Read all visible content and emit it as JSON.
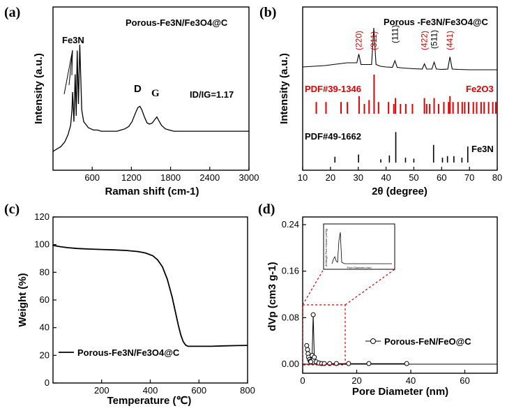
{
  "panels": {
    "a": {
      "label": "(a)"
    },
    "b": {
      "label": "(b)"
    },
    "c": {
      "label": "(c)"
    },
    "d": {
      "label": "(d)"
    }
  },
  "chart_data": [
    {
      "id": "a",
      "type": "line",
      "title": "Porous-Fe3N/Fe3O4@C",
      "xlabel": "Raman shift (cm-1)",
      "ylabel": "Intensity (a.u.)",
      "xlim": [
        0,
        3000
      ],
      "xticks": [
        600,
        1200,
        1800,
        2400,
        3000
      ],
      "annotations": {
        "fe3n": "Fe3N",
        "d": "D",
        "g": "G",
        "ratio": "ID/IG=1.17"
      },
      "series": [
        {
          "x": [
            0,
            60,
            120,
            180,
            230,
            270,
            290,
            300,
            320,
            340,
            355,
            370,
            390,
            410,
            440,
            470,
            500,
            540,
            580,
            620,
            680,
            740,
            800,
            860,
            920,
            980,
            1040,
            1100,
            1160,
            1210,
            1260,
            1300,
            1330,
            1360,
            1400,
            1440,
            1480,
            1520,
            1560,
            1590,
            1620,
            1660,
            1720,
            1780,
            1850,
            1950,
            2050,
            2150,
            2250,
            2350,
            2450,
            2550,
            2650,
            2750,
            2850,
            2950,
            3000
          ],
          "y": [
            0.1,
            0.12,
            0.14,
            0.18,
            0.24,
            0.32,
            0.45,
            0.6,
            0.35,
            0.75,
            0.4,
            0.95,
            0.5,
            1.0,
            0.45,
            0.35,
            0.33,
            0.3,
            0.29,
            0.28,
            0.28,
            0.27,
            0.27,
            0.27,
            0.27,
            0.27,
            0.28,
            0.29,
            0.31,
            0.35,
            0.42,
            0.47,
            0.48,
            0.45,
            0.39,
            0.34,
            0.33,
            0.34,
            0.37,
            0.39,
            0.36,
            0.32,
            0.29,
            0.28,
            0.27,
            0.27,
            0.27,
            0.27,
            0.27,
            0.27,
            0.27,
            0.27,
            0.27,
            0.27,
            0.27,
            0.27,
            0.27
          ]
        }
      ]
    },
    {
      "id": "b",
      "type": "line",
      "title": "Porous -Fe3N/Fe3O4@C",
      "xlabel": "2θ (degree)",
      "ylabel": "Intensity (a.u.)",
      "xlim": [
        10,
        80
      ],
      "xticks": [
        10,
        20,
        30,
        40,
        50,
        60,
        70,
        80
      ],
      "peak_labels": [
        {
          "text": "(220)",
          "x": 30.2,
          "color": "#e00000"
        },
        {
          "text": "(311)",
          "x": 35.6,
          "color": "#e00000"
        },
        {
          "text": "(111)",
          "x": 43.2,
          "color": "#000000"
        },
        {
          "text": "(422)",
          "x": 53.8,
          "color": "#e00000"
        },
        {
          "text": "(511)",
          "x": 57.3,
          "color": "#000000"
        },
        {
          "text": "(441)",
          "x": 63.0,
          "color": "#e00000"
        }
      ],
      "pattern": {
        "x": [
          10,
          14,
          18,
          22,
          26,
          28,
          29.5,
          30.2,
          31,
          33,
          34.8,
          35.6,
          36.4,
          38,
          40,
          42.3,
          43.2,
          44,
          46,
          50,
          53,
          53.8,
          54.6,
          56.5,
          57.3,
          58.1,
          60,
          62.2,
          63.0,
          63.8,
          66,
          70,
          75,
          80
        ],
        "y": [
          0.48,
          0.5,
          0.52,
          0.56,
          0.6,
          0.6,
          0.6,
          0.85,
          0.55,
          0.55,
          0.55,
          1.6,
          0.55,
          0.5,
          0.48,
          0.47,
          0.66,
          0.47,
          0.45,
          0.43,
          0.42,
          0.57,
          0.42,
          0.42,
          0.62,
          0.42,
          0.41,
          0.42,
          0.77,
          0.42,
          0.41,
          0.4,
          0.4,
          0.4
        ]
      },
      "references": [
        {
          "name": "PDF#39-1346",
          "phase": "Fe2O3",
          "color": "#e00000",
          "positions": [
            14.9,
            18.4,
            23.8,
            26.1,
            30.3,
            32.2,
            33.9,
            35.7,
            37.3,
            40.9,
            42.8,
            43.4,
            45.2,
            47.1,
            49.5,
            53.8,
            54.6,
            55.7,
            57.3,
            58.9,
            60.8,
            62.5,
            63.0,
            64.1,
            65.9,
            67.4,
            68.3,
            69.7,
            71.4,
            72.6,
            74.2,
            75.3,
            76.9,
            78.4,
            79.5
          ],
          "intensities": [
            0.3,
            0.3,
            0.3,
            0.3,
            0.45,
            0.25,
            0.35,
            1.0,
            0.3,
            0.3,
            0.25,
            0.4,
            0.25,
            0.25,
            0.25,
            0.4,
            0.25,
            0.25,
            0.4,
            0.25,
            0.3,
            0.3,
            0.45,
            0.3,
            0.3,
            0.3,
            0.3,
            0.3,
            0.3,
            0.3,
            0.3,
            0.3,
            0.3,
            0.3,
            0.3
          ]
        },
        {
          "name": "PDF#49-1662",
          "phase": "Fe3N",
          "color": "#000000",
          "positions": [
            21.6,
            30.1,
            38.1,
            41.2,
            43.5,
            47.0,
            50.0,
            57.1,
            60.3,
            62.1,
            64.4,
            67.3,
            69.4
          ],
          "intensities": [
            0.18,
            0.25,
            0.1,
            0.22,
            0.95,
            0.15,
            0.12,
            0.55,
            0.15,
            0.2,
            0.2,
            0.15,
            0.5
          ]
        }
      ]
    },
    {
      "id": "c",
      "type": "line",
      "xlabel": "Temperature (℃)",
      "ylabel": "Weight (%)",
      "xlim": [
        0,
        800
      ],
      "ylim": [
        0,
        120
      ],
      "xticks": [
        200,
        400,
        600,
        800
      ],
      "yticks": [
        0,
        20,
        40,
        60,
        80,
        100,
        120
      ],
      "series": [
        {
          "name": "Porous-Fe3N/Fe3O4@C",
          "x": [
            0,
            30,
            60,
            100,
            150,
            200,
            250,
            300,
            350,
            380,
            410,
            430,
            450,
            470,
            490,
            505,
            515,
            525,
            535,
            545,
            555,
            600,
            650,
            700,
            750,
            800
          ],
          "y": [
            99.5,
            98.5,
            97.8,
            97.2,
            96.8,
            96.5,
            96.2,
            95.8,
            95,
            94,
            92,
            89,
            84,
            75,
            62,
            50,
            42,
            35,
            30,
            27.5,
            26.5,
            26.5,
            26.5,
            26.8,
            27.0,
            27.2
          ]
        }
      ]
    },
    {
      "id": "d",
      "type": "scatter",
      "xlabel": "Pore Diameter (nm)",
      "ylabel": "dVp (cm3 g-1)",
      "xlim": [
        0,
        72
      ],
      "ylim": [
        -0.005,
        0.25
      ],
      "xticks": [
        0,
        20,
        40,
        60
      ],
      "yticks": [
        0.0,
        0.08,
        0.16,
        0.24
      ],
      "ytick_labels": [
        "0.00",
        "0.08",
        "0.16",
        "0.24"
      ],
      "series": [
        {
          "name": "Porous-FeN/FeO@C",
          "x": [
            1.5,
            1.8,
            2.0,
            2.2,
            2.5,
            2.8,
            3.0,
            3.5,
            3.9,
            4.3,
            5,
            6,
            7,
            8,
            10,
            12.5,
            17,
            24.5,
            38.5
          ],
          "y": [
            0.032,
            0.025,
            0.018,
            0.012,
            0.008,
            0.005,
            0.004,
            0.015,
            0.085,
            0.012,
            0.004,
            0.002,
            0.001,
            0.001,
            0.001,
            0.001,
            0.001,
            0.001,
            0.001
          ]
        }
      ],
      "inset_ylabel": "dV/dlogD Pore Volume (cm³/g)",
      "inset_xlabel": "Pore Diameter (nm)"
    }
  ]
}
